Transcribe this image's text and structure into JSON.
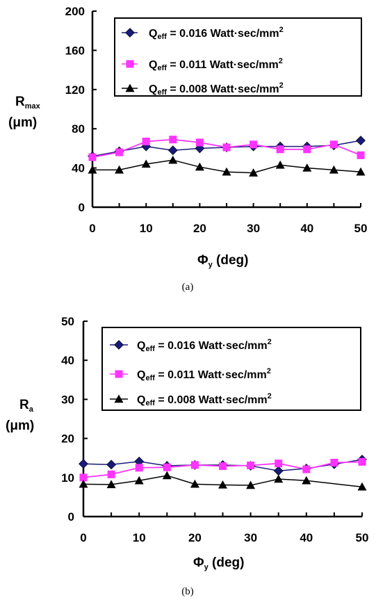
{
  "figure": {
    "captions": [
      "(a)",
      "(b)"
    ]
  },
  "legend_labels": [
    {
      "prefix": "Q",
      "sub": "eff",
      "text": " = 0.016 Watt·sec/mm",
      "sup": "2"
    },
    {
      "prefix": "Q",
      "sub": "eff",
      "text": " = 0.011 Watt·sec/mm",
      "sup": "2"
    },
    {
      "prefix": "Q",
      "sub": "eff",
      "text": " = 0.008 Watt·sec/mm",
      "sup": "2"
    }
  ],
  "colors": {
    "series_0016": "#1a1a7a",
    "series_0011": "#ff33ff",
    "series_0008": "#000000"
  },
  "markers": [
    "diamond",
    "square",
    "triangle"
  ],
  "chart_data": [
    {
      "type": "line",
      "caption": "(a)",
      "ylabel_main": "R",
      "ylabel_sub": "max",
      "ylabel_unit": "(μm)",
      "xlabel_main": "Φ",
      "xlabel_sub": "y",
      "xlabel_unit": "(deg)",
      "xlim": [
        0,
        50
      ],
      "ylim": [
        0,
        200
      ],
      "xticks": [
        0,
        10,
        20,
        30,
        40,
        50
      ],
      "yticks": [
        0,
        40,
        80,
        120,
        160,
        200
      ],
      "legend_position": "top-right",
      "grid": false,
      "x": [
        0,
        5,
        10,
        15,
        20,
        25,
        30,
        35,
        40,
        45,
        50
      ],
      "series": [
        {
          "name": "Qeff = 0.016 Watt·sec/mm2",
          "values": [
            52,
            57,
            62,
            58,
            60,
            61,
            62,
            62,
            62,
            63,
            68
          ]
        },
        {
          "name": "Qeff = 0.011 Watt·sec/mm2",
          "values": [
            51,
            56,
            67,
            69,
            66,
            61,
            64,
            59,
            59,
            64,
            53
          ]
        },
        {
          "name": "Qeff = 0.008 Watt·sec/mm2",
          "values": [
            38,
            38,
            44,
            48,
            41,
            36,
            35,
            43,
            40,
            38,
            36
          ]
        }
      ]
    },
    {
      "type": "line",
      "caption": "(b)",
      "ylabel_main": "R",
      "ylabel_sub": "a",
      "ylabel_unit": "(μm)",
      "xlabel_main": "Φ",
      "xlabel_sub": "y",
      "xlabel_unit": "(deg)",
      "xlim": [
        0,
        50
      ],
      "ylim": [
        0,
        50
      ],
      "xticks": [
        0,
        10,
        20,
        30,
        40,
        50
      ],
      "yticks": [
        0,
        10,
        20,
        30,
        40,
        50
      ],
      "legend_position": "top-right",
      "grid": false,
      "x": [
        0,
        5,
        10,
        15,
        20,
        25,
        30,
        35,
        40,
        45,
        50
      ],
      "series": [
        {
          "name": "Qeff = 0.016 Watt·sec/mm2",
          "values": [
            13.5,
            13.3,
            14.1,
            13.0,
            13.2,
            13.2,
            13.0,
            11.7,
            12.3,
            13.4,
            14.6
          ]
        },
        {
          "name": "Qeff = 0.011 Watt·sec/mm2",
          "values": [
            10.0,
            10.8,
            12.5,
            12.6,
            13.2,
            12.9,
            13.1,
            13.6,
            12.1,
            13.8,
            14.0
          ]
        },
        {
          "name": "Qeff = 0.008 Watt·sec/mm2",
          "values": [
            8.3,
            8.2,
            9.2,
            10.5,
            8.3,
            8.1,
            8.0,
            9.6,
            9.2,
            null,
            7.6
          ]
        }
      ]
    }
  ]
}
